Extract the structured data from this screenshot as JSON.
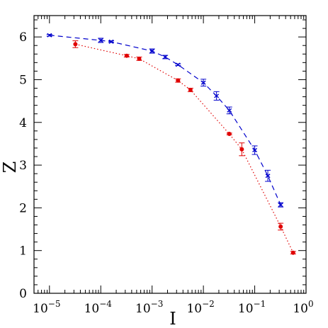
{
  "chart_data": {
    "type": "line",
    "title": "",
    "xlabel": "I",
    "ylabel": "Z",
    "xscale": "log",
    "xlim": [
      5e-06,
      1
    ],
    "ylim": [
      0,
      6.5
    ],
    "grid": false,
    "legend": "none",
    "x_tick_labels": [
      {
        "value": 1e-05,
        "base": "10",
        "exp": "−5"
      },
      {
        "value": 0.0001,
        "base": "10",
        "exp": "−4"
      },
      {
        "value": 0.001,
        "base": "10",
        "exp": "−3"
      },
      {
        "value": 0.01,
        "base": "10",
        "exp": "−2"
      },
      {
        "value": 0.1,
        "base": "10",
        "exp": "−1"
      },
      {
        "value": 1,
        "base": "10",
        "exp": "0"
      }
    ],
    "y_tick_labels": [
      "0",
      "1",
      "2",
      "3",
      "4",
      "5",
      "6"
    ],
    "series": [
      {
        "color": "#0000cc",
        "line_style": "dashed",
        "marker": "x",
        "points": [
          {
            "x": 1e-05,
            "y": 6.04,
            "err": 0.02
          },
          {
            "x": 0.0001,
            "y": 5.92,
            "err": 0.05
          },
          {
            "x": 0.00016,
            "y": 5.89,
            "err": 0.02
          },
          {
            "x": 0.001,
            "y": 5.67,
            "err": 0.05
          },
          {
            "x": 0.0018,
            "y": 5.53,
            "err": 0.04
          },
          {
            "x": 0.0032,
            "y": 5.35,
            "err": 0.02
          },
          {
            "x": 0.01,
            "y": 4.93,
            "err": 0.08
          },
          {
            "x": 0.018,
            "y": 4.62,
            "err": 0.1
          },
          {
            "x": 0.032,
            "y": 4.28,
            "err": 0.08
          },
          {
            "x": 0.1,
            "y": 3.35,
            "err": 0.1
          },
          {
            "x": 0.18,
            "y": 2.75,
            "err": 0.13
          },
          {
            "x": 0.32,
            "y": 2.07,
            "err": 0.05
          }
        ]
      },
      {
        "color": "#e00000",
        "line_style": "dotted",
        "marker": "circle",
        "points": [
          {
            "x": 3.2e-05,
            "y": 5.83,
            "err": 0.08
          },
          {
            "x": 0.00032,
            "y": 5.56,
            "err": 0.03
          },
          {
            "x": 0.00056,
            "y": 5.49,
            "err": 0.04
          },
          {
            "x": 0.0032,
            "y": 4.98,
            "err": 0.04
          },
          {
            "x": 0.0056,
            "y": 4.76,
            "err": 0.04
          },
          {
            "x": 0.032,
            "y": 3.73,
            "err": 0.02
          },
          {
            "x": 0.056,
            "y": 3.37,
            "err": 0.15
          },
          {
            "x": 0.32,
            "y": 1.56,
            "err": 0.08
          },
          {
            "x": 0.56,
            "y": 0.95,
            "err": 0.03
          }
        ]
      }
    ]
  }
}
